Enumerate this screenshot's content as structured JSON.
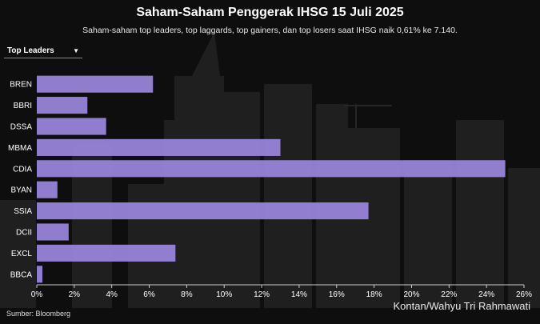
{
  "header": {
    "title": "Saham-Saham Penggerak IHSG 15 Juli 2025",
    "subtitle": "Saham-saham top leaders, top laggards, top gainers, dan top losers saat IHSG naik 0,61% ke 7.140."
  },
  "dropdown": {
    "selected": "Top Leaders",
    "icon": "caret-down-icon"
  },
  "footer": {
    "source": "Sumber: Bloomberg",
    "credit": "Kontan/Wahyu Tri Rahmawati"
  },
  "colors": {
    "bar": "#9b87de",
    "background": "#0e0e0e"
  },
  "chart_data": {
    "type": "bar",
    "orientation": "horizontal",
    "categories": [
      "BREN",
      "BBRI",
      "DSSA",
      "MBMA",
      "CDIA",
      "BYAN",
      "SSIA",
      "DCII",
      "EXCL",
      "BBCA"
    ],
    "values": [
      6.2,
      2.7,
      3.7,
      13.0,
      25.0,
      1.1,
      17.7,
      1.7,
      7.4,
      0.3
    ],
    "xlim": [
      0,
      26
    ],
    "xticks": [
      "0%",
      "2%",
      "4%",
      "6%",
      "8%",
      "10%",
      "12%",
      "14%",
      "16%",
      "18%",
      "20%",
      "22%",
      "24%",
      "26%"
    ],
    "title": "",
    "xlabel": "",
    "ylabel": "",
    "grid": false
  }
}
